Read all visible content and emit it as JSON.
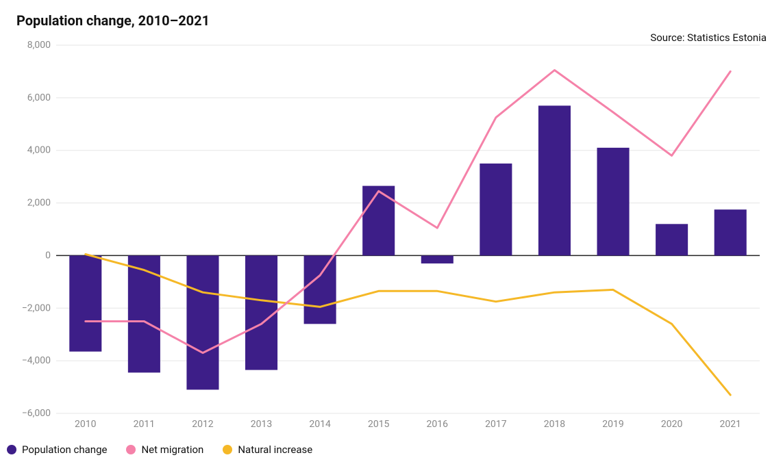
{
  "title": "Population change, 2010–2021",
  "source": "Source: Statistics Estonia",
  "chart": {
    "type": "bar+line",
    "background_color": "#ffffff",
    "categories": [
      "2010",
      "2011",
      "2012",
      "2013",
      "2014",
      "2015",
      "2016",
      "2017",
      "2018",
      "2019",
      "2020",
      "2021"
    ],
    "ylim": [
      -6000,
      8000
    ],
    "ytick_step": 2000,
    "ytick_labels": [
      "−6,000",
      "−4,000",
      "−2,000",
      "0",
      "2,000",
      "4,000",
      "6,000",
      "8,000"
    ],
    "grid_color": "#e5e5e5",
    "zero_line_color": "#222222",
    "zero_line_width": 1.5,
    "xaxis_label_color": "#888888",
    "yaxis_label_color": "#888888",
    "axis_label_fontsize": 14,
    "series": {
      "population_change": {
        "label": "Population change",
        "type": "bar",
        "color": "#3d1e88",
        "bar_width_ratio": 0.55,
        "values": [
          -3650,
          -4450,
          -5100,
          -4350,
          -2600,
          2650,
          -300,
          3500,
          5700,
          4100,
          1200,
          1750
        ]
      },
      "net_migration": {
        "label": "Net migration",
        "type": "line",
        "color": "#f582a9",
        "line_width": 3,
        "values": [
          -2500,
          -2500,
          -3700,
          -2600,
          -750,
          2450,
          1050,
          5250,
          7050,
          5450,
          3800,
          7000
        ]
      },
      "natural_increase": {
        "label": "Natural increase",
        "type": "line",
        "color": "#f5b827",
        "line_width": 3,
        "values": [
          50,
          -550,
          -1400,
          -1700,
          -1950,
          -1350,
          -1350,
          -1750,
          -1400,
          -1300,
          -2600,
          -5300
        ]
      }
    }
  },
  "legend": {
    "items": [
      {
        "key": "population_change",
        "label": "Population change",
        "swatch": "#3d1e88"
      },
      {
        "key": "net_migration",
        "label": "Net migration",
        "swatch": "#f582a9"
      },
      {
        "key": "natural_increase",
        "label": "Natural increase",
        "swatch": "#f5b827"
      }
    ]
  }
}
